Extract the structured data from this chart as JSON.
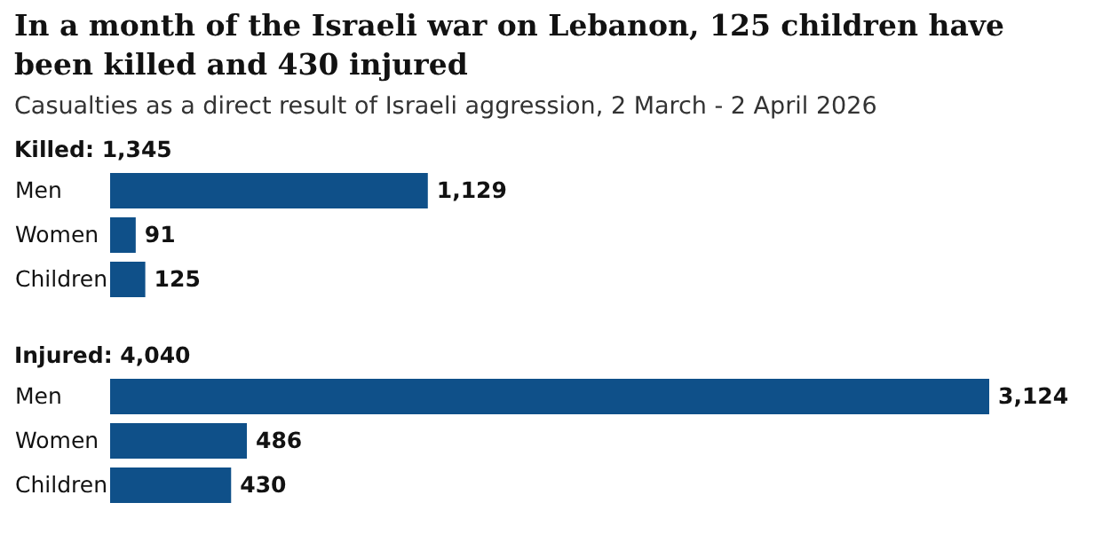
{
  "chart_data": [
    {
      "type": "other",
      "title": "In a month of the Israeli war on Lebanon, 125 children have been killed and 430 injured",
      "subtitle": "Casualties as a direct result of Israeli aggression, 2 March - 2 April 2026"
    },
    {
      "type": "bar",
      "orientation": "horizontal",
      "title": "Killed: 1,345",
      "categories": [
        "Men",
        "Women",
        "Children"
      ],
      "values": [
        1129,
        91,
        125
      ],
      "value_labels": [
        "1,129",
        "91",
        "125"
      ],
      "color": "#0f5089",
      "tick_labels": "y"
    },
    {
      "type": "bar",
      "orientation": "horizontal",
      "title": "Injured: 4,040",
      "categories": [
        "Men",
        "Women",
        "Children"
      ],
      "values": [
        3124,
        486,
        430
      ],
      "value_labels": [
        "3,124",
        "486",
        "430"
      ],
      "color": "#0f5089",
      "tick_labels": "y"
    }
  ]
}
